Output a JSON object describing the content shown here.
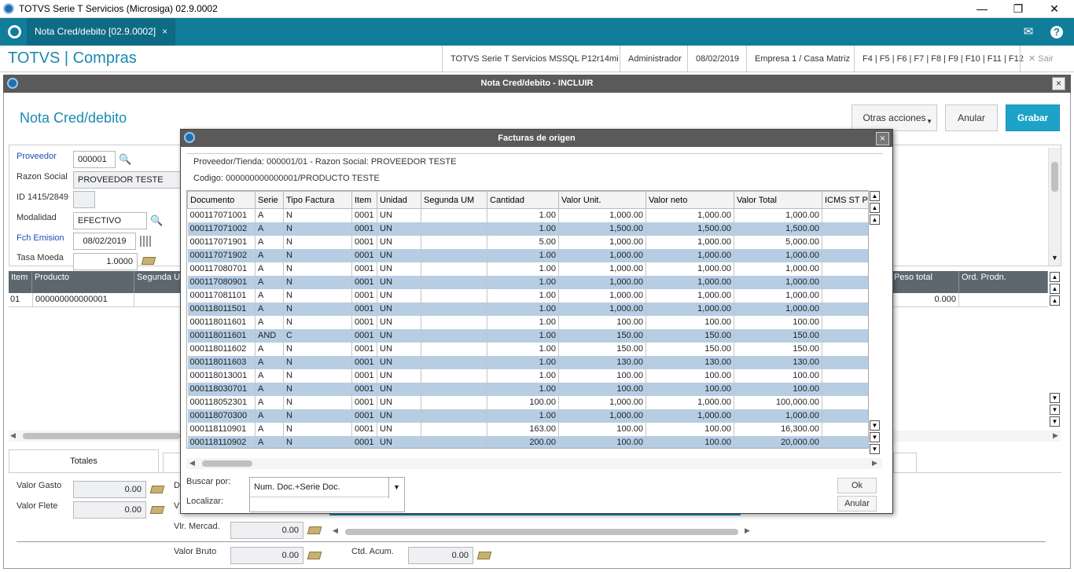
{
  "window": {
    "title": "TOTVS Serie T Servicios (Microsiga) 02.9.0002"
  },
  "tab": {
    "label": "Nota Cred/debito [02.9.0002]",
    "close": "×"
  },
  "appbar": {
    "brand": "TOTVS | Compras",
    "env": "TOTVS Serie T Servicios MSSQL P12r14mi",
    "user": "Administrador",
    "date": "08/02/2019",
    "company": "Empresa 1 / Casa Matriz",
    "keys": "F4 | F5 | F6 | F7 | F8 | F9 | F10 | F11 | F12",
    "exit": "Sair"
  },
  "dialog": {
    "title": "Nota Cred/debito - INCLUIR",
    "heading": "Nota Cred/debito",
    "more_actions": "Otras acciones",
    "cancel": "Anular",
    "save": "Grabar"
  },
  "form": {
    "proveedor_label": "Proveedor",
    "proveedor_value": "000001",
    "razon_label": "Razon Social",
    "razon_value": "PROVEEDOR TESTE",
    "id_label": "ID 1415/2849",
    "modalidad_label": "Modalidad",
    "modalidad_value": "EFECTIVO",
    "fch_label": "Fch Emision",
    "fch_value": "08/02/2019",
    "tasa_label": "Tasa Moeda",
    "tasa_value": "1.0000"
  },
  "items_grid": {
    "headers": [
      "Item",
      "Producto",
      "Segunda UM",
      "Peso total",
      "Ord. Prodn."
    ],
    "row": {
      "item": "01",
      "producto": "000000000000001",
      "peso": "0.000"
    }
  },
  "totals": {
    "tab": "Totales",
    "valor_gasto_label": "Valor Gasto",
    "valor_gasto": "0.00",
    "valor_flete_label": "Valor Flete",
    "valor_flete": "0.00",
    "vlr_mercad_label": "Vlr. Mercad.",
    "vlr_mercad": "0.00",
    "valor_bruto_label": "Valor Bruto",
    "valor_bruto": "0.00",
    "ctd_acum_label": "Ctd. Acum.",
    "ctd_acum": "0.00",
    "d_label": "D",
    "v_label": "V",
    "v2_label": "V"
  },
  "modal": {
    "title": "Facturas de origen",
    "info1": "Proveedor/Tienda: 000001/01  -  Razon Social: PROVEEDOR TESTE",
    "info2": "Codigo: 000000000000001/PRODUCTO TESTE",
    "headers": [
      "Documento",
      "Serie",
      "Tipo Factura",
      "Item",
      "Unidad",
      "Segunda UM",
      "Cantidad",
      "Valor Unit.",
      "Valor neto",
      "Valor Total",
      "ICMS ST Pr"
    ],
    "rows": [
      [
        "000117071001",
        "A",
        "N",
        "0001",
        "UN",
        "",
        "1.00",
        "1,000.00",
        "1,000.00",
        "1,000.00"
      ],
      [
        "000117071002",
        "A",
        "N",
        "0001",
        "UN",
        "",
        "1.00",
        "1,500.00",
        "1,500.00",
        "1,500.00"
      ],
      [
        "000117071901",
        "A",
        "N",
        "0001",
        "UN",
        "",
        "5.00",
        "1,000.00",
        "1,000.00",
        "5,000.00"
      ],
      [
        "000117071902",
        "A",
        "N",
        "0001",
        "UN",
        "",
        "1.00",
        "1,000.00",
        "1,000.00",
        "1,000.00"
      ],
      [
        "000117080701",
        "A",
        "N",
        "0001",
        "UN",
        "",
        "1.00",
        "1,000.00",
        "1,000.00",
        "1,000.00"
      ],
      [
        "000117080901",
        "A",
        "N",
        "0001",
        "UN",
        "",
        "1.00",
        "1,000.00",
        "1,000.00",
        "1,000.00"
      ],
      [
        "000117081101",
        "A",
        "N",
        "0001",
        "UN",
        "",
        "1.00",
        "1,000.00",
        "1,000.00",
        "1,000.00"
      ],
      [
        "000118011501",
        "A",
        "N",
        "0001",
        "UN",
        "",
        "1.00",
        "1,000.00",
        "1,000.00",
        "1,000.00"
      ],
      [
        "000118011601",
        "A",
        "N",
        "0001",
        "UN",
        "",
        "1.00",
        "100.00",
        "100.00",
        "100.00"
      ],
      [
        "000118011601",
        "AND",
        "C",
        "0001",
        "UN",
        "",
        "1.00",
        "150.00",
        "150.00",
        "150.00"
      ],
      [
        "000118011602",
        "A",
        "N",
        "0001",
        "UN",
        "",
        "1.00",
        "150.00",
        "150.00",
        "150.00"
      ],
      [
        "000118011603",
        "A",
        "N",
        "0001",
        "UN",
        "",
        "1.00",
        "130.00",
        "130.00",
        "130.00"
      ],
      [
        "000118013001",
        "A",
        "N",
        "0001",
        "UN",
        "",
        "1.00",
        "100.00",
        "100.00",
        "100.00"
      ],
      [
        "000118030701",
        "A",
        "N",
        "0001",
        "UN",
        "",
        "1.00",
        "100.00",
        "100.00",
        "100.00"
      ],
      [
        "000118052301",
        "A",
        "N",
        "0001",
        "UN",
        "",
        "100.00",
        "1,000.00",
        "1,000.00",
        "100,000.00"
      ],
      [
        "000118070300",
        "A",
        "N",
        "0001",
        "UN",
        "",
        "1.00",
        "1,000.00",
        "1,000.00",
        "1,000.00"
      ],
      [
        "000118110901",
        "A",
        "N",
        "0001",
        "UN",
        "",
        "163.00",
        "100.00",
        "100.00",
        "16,300.00"
      ],
      [
        "000118110902",
        "A",
        "N",
        "0001",
        "UN",
        "",
        "200.00",
        "100.00",
        "100.00",
        "20,000.00"
      ]
    ],
    "buscar_label": "Buscar por:",
    "buscar_value": "Num. Doc.+Serie Doc.",
    "localizar_label": "Localizar:",
    "ok": "Ok",
    "cancel": "Anular"
  }
}
